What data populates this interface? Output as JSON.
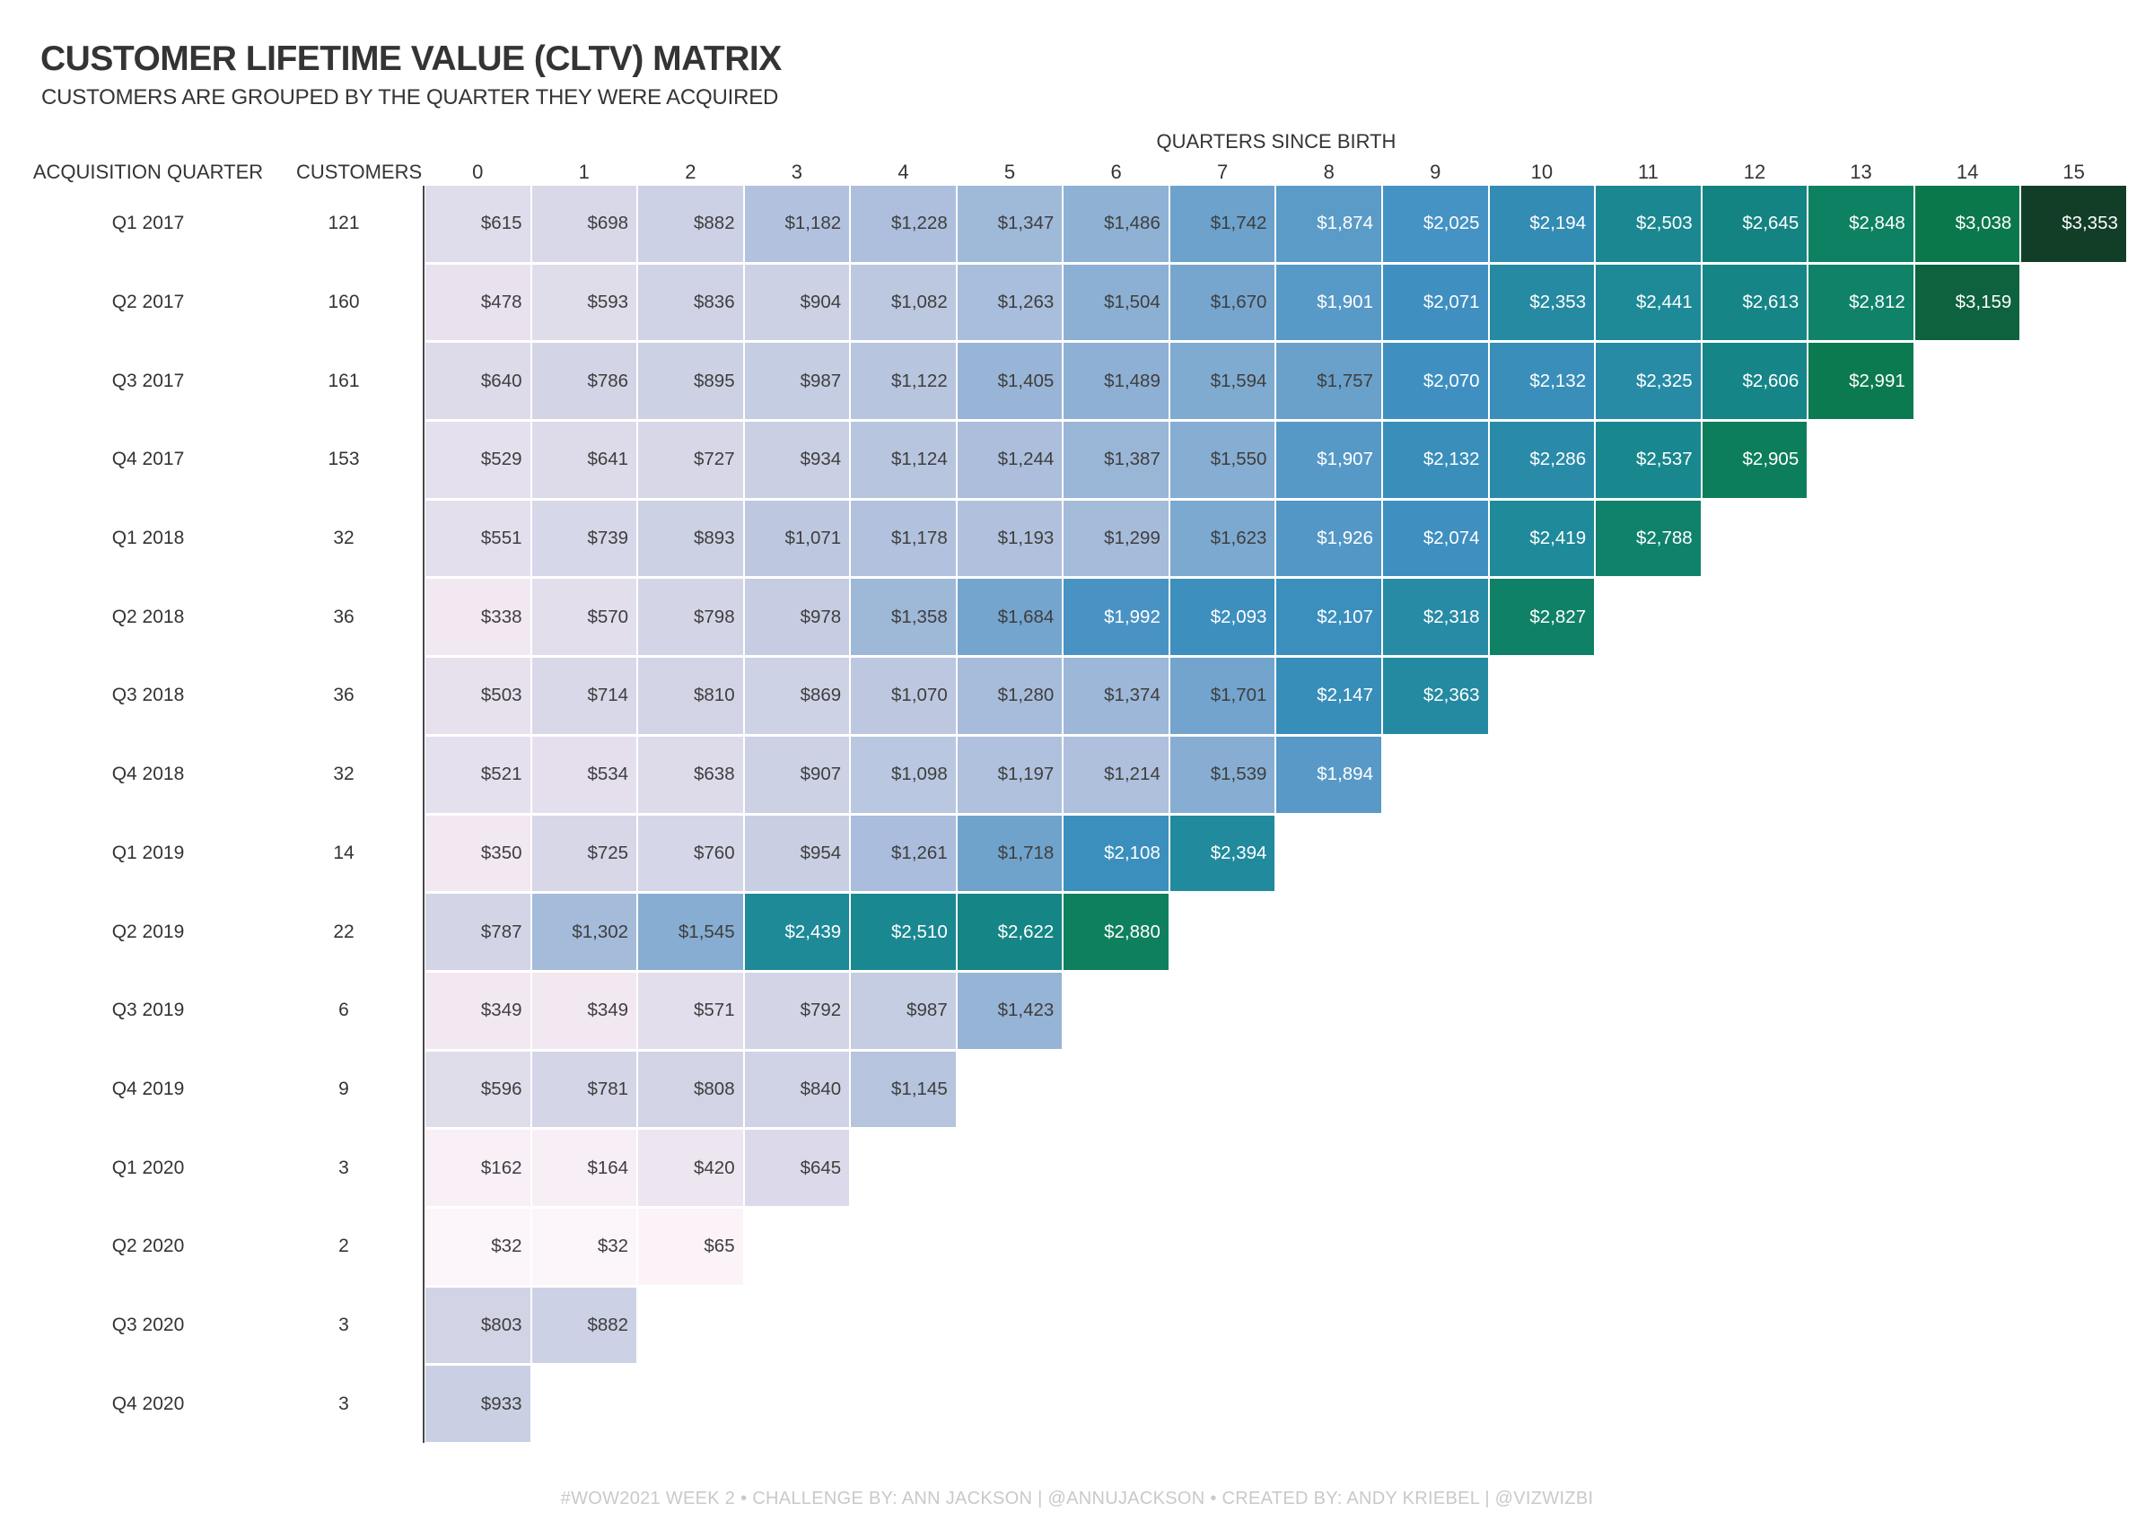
{
  "header": {
    "title": "CUSTOMER LIFETIME VALUE (CLTV) MATRIX",
    "subtitle": "CUSTOMERS ARE GROUPED BY THE QUARTER THEY WERE ACQUIRED"
  },
  "matrix": {
    "group_axis_label": "QUARTERS SINCE BIRTH",
    "row_axis_label": "ACQUISITION QUARTER",
    "customers_label": "CUSTOMERS"
  },
  "footer": {
    "credit": "#WOW2021 WEEK 2 • CHALLENGE BY: ANN JACKSON | @ANNUJACKSON • CREATED BY: ANDY KRIEBEL | @VIZWIZBI"
  },
  "chart_data": {
    "type": "heatmap",
    "title": "CUSTOMER LIFETIME VALUE (CLTV) MATRIX",
    "subtitle": "CUSTOMERS ARE GROUPED BY THE QUARTER THEY WERE ACQUIRED",
    "x_axis_label": "QUARTERS SINCE BIRTH",
    "y_axis_label": "ACQUISITION QUARTER",
    "columns": [
      "0",
      "1",
      "2",
      "3",
      "4",
      "5",
      "6",
      "7",
      "8",
      "9",
      "10",
      "11",
      "12",
      "13",
      "14",
      "15"
    ],
    "value_prefix": "$",
    "legend": "none",
    "rows": [
      {
        "quarter": "Q1 2017",
        "customers": 121,
        "values": [
          615,
          698,
          882,
          1182,
          1228,
          1347,
          1486,
          1742,
          1874,
          2025,
          2194,
          2503,
          2645,
          2848,
          3038,
          3353
        ]
      },
      {
        "quarter": "Q2 2017",
        "customers": 160,
        "values": [
          478,
          593,
          836,
          904,
          1082,
          1263,
          1504,
          1670,
          1901,
          2071,
          2353,
          2441,
          2613,
          2812,
          3159
        ]
      },
      {
        "quarter": "Q3 2017",
        "customers": 161,
        "values": [
          640,
          786,
          895,
          987,
          1122,
          1405,
          1489,
          1594,
          1757,
          2070,
          2132,
          2325,
          2606,
          2991
        ]
      },
      {
        "quarter": "Q4 2017",
        "customers": 153,
        "values": [
          529,
          641,
          727,
          934,
          1124,
          1244,
          1387,
          1550,
          1907,
          2132,
          2286,
          2537,
          2905
        ]
      },
      {
        "quarter": "Q1 2018",
        "customers": 32,
        "values": [
          551,
          739,
          893,
          1071,
          1178,
          1193,
          1299,
          1623,
          1926,
          2074,
          2419,
          2788
        ]
      },
      {
        "quarter": "Q2 2018",
        "customers": 36,
        "values": [
          338,
          570,
          798,
          978,
          1358,
          1684,
          1992,
          2093,
          2107,
          2318,
          2827
        ]
      },
      {
        "quarter": "Q3 2018",
        "customers": 36,
        "values": [
          503,
          714,
          810,
          869,
          1070,
          1280,
          1374,
          1701,
          2147,
          2363
        ]
      },
      {
        "quarter": "Q4 2018",
        "customers": 32,
        "values": [
          521,
          534,
          638,
          907,
          1098,
          1197,
          1214,
          1539,
          1894
        ]
      },
      {
        "quarter": "Q1 2019",
        "customers": 14,
        "values": [
          350,
          725,
          760,
          954,
          1261,
          1718,
          2108,
          2394
        ]
      },
      {
        "quarter": "Q2 2019",
        "customers": 22,
        "values": [
          787,
          1302,
          1545,
          2439,
          2510,
          2622,
          2880
        ]
      },
      {
        "quarter": "Q3 2019",
        "customers": 6,
        "values": [
          349,
          349,
          571,
          792,
          987,
          1423
        ]
      },
      {
        "quarter": "Q4 2019",
        "customers": 9,
        "values": [
          596,
          781,
          808,
          840,
          1145
        ]
      },
      {
        "quarter": "Q1 2020",
        "customers": 3,
        "values": [
          162,
          164,
          420,
          645
        ]
      },
      {
        "quarter": "Q2 2020",
        "customers": 2,
        "values": [
          32,
          32,
          65
        ]
      },
      {
        "quarter": "Q3 2020",
        "customers": 3,
        "values": [
          803,
          882
        ]
      },
      {
        "quarter": "Q4 2020",
        "customers": 3,
        "values": [
          933
        ]
      }
    ],
    "color_scale": {
      "stops": [
        {
          "v": 0,
          "c": "#fdf6fa"
        },
        {
          "v": 350,
          "c": "#f2e8f1"
        },
        {
          "v": 650,
          "c": "#dcdaea"
        },
        {
          "v": 950,
          "c": "#c9cfe3"
        },
        {
          "v": 1250,
          "c": "#abbedc"
        },
        {
          "v": 1550,
          "c": "#86add2"
        },
        {
          "v": 1850,
          "c": "#5e9cc8"
        },
        {
          "v": 2050,
          "c": "#4190c3"
        },
        {
          "v": 2250,
          "c": "#2d8bad"
        },
        {
          "v": 2450,
          "c": "#1d8a97"
        },
        {
          "v": 2650,
          "c": "#148482"
        },
        {
          "v": 2850,
          "c": "#0e8162"
        },
        {
          "v": 3050,
          "c": "#0b7749"
        },
        {
          "v": 3353,
          "c": "#123e27"
        }
      ]
    },
    "text_colors": {
      "dark": "#3e3e3e",
      "light": "#ffffff"
    },
    "axis_rule_color": "#474747"
  }
}
